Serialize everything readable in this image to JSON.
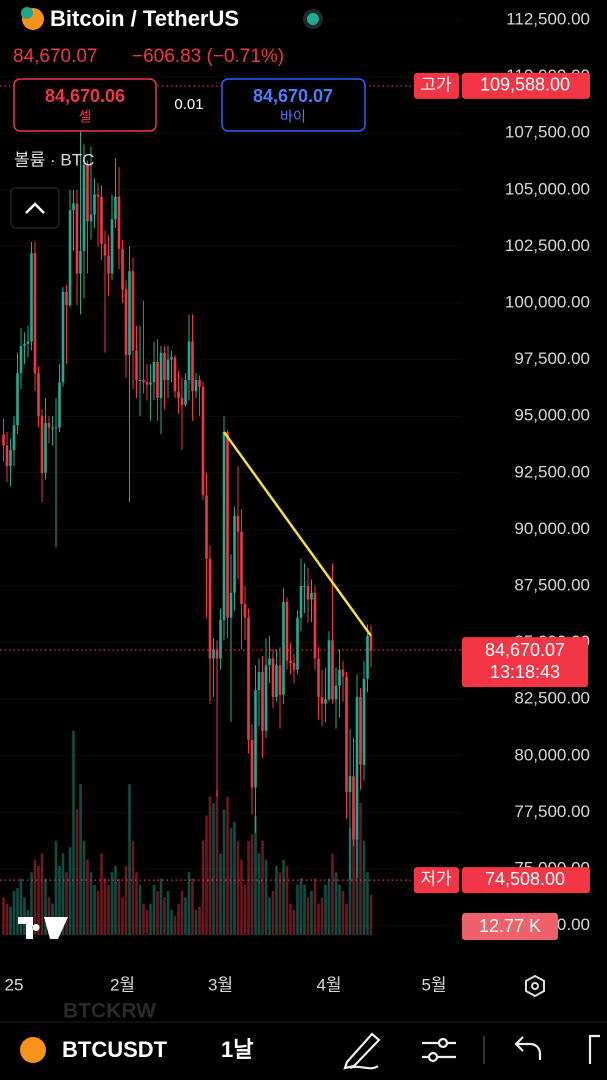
{
  "header": {
    "symbol_title": "Bitcoin / TetherUS",
    "price": "84,670.07",
    "change": "−606.83 (−0.71%)",
    "sell_price": "84,670.06",
    "sell_label": "셀",
    "spread": "0.01",
    "buy_price": "84,670.07",
    "buy_label": "바이",
    "volume_label": "볼륨 · BTC"
  },
  "chart_data": {
    "type": "candlestick",
    "up_color": "#22ab94",
    "down_color": "#f23645",
    "open": [
      94200,
      93700,
      92800,
      93500,
      94600,
      96900,
      98100,
      98200,
      98300,
      102200,
      96900,
      95000,
      92500,
      94700,
      94500,
      94500,
      94500,
      96500,
      100500,
      99900,
      104100,
      104400,
      101300,
      102300,
      106100,
      103600,
      103900,
      104800,
      104700,
      102600,
      102100,
      101300,
      103700,
      104700,
      102400,
      100600,
      97700,
      101400,
      97900,
      96600,
      96600,
      96500,
      96400,
      96500,
      97400,
      95800,
      97800,
      96600,
      97500,
      97600,
      96100,
      95800,
      95500,
      96600,
      98300,
      96100,
      96600,
      96300,
      91500,
      88700,
      84300,
      84700,
      84300,
      86000,
      94300,
      86100,
      87200,
      90600,
      89900,
      86700,
      86100,
      80700,
      78600,
      82900,
      83700,
      81100,
      84000,
      84300,
      82600,
      84000,
      82700,
      86800,
      84200,
      84100,
      83800,
      86100,
      87500,
      87500,
      86900,
      87200,
      84300,
      82600,
      82300,
      82500,
      85100,
      82500,
      83100,
      83800,
      83500,
      78400,
      79100,
      76300,
      82600,
      79600,
      83400,
      85300
    ],
    "high": [
      94900,
      94300,
      94000,
      95000,
      97800,
      98900,
      98700,
      99000,
      102700,
      102700,
      97200,
      95300,
      95800,
      95000,
      95000,
      95800,
      97300,
      100700,
      100800,
      105000,
      105000,
      105000,
      109588,
      107000,
      106300,
      106900,
      105500,
      105300,
      105200,
      103200,
      103000,
      104800,
      106400,
      106000,
      102800,
      101000,
      102500,
      102000,
      99000,
      99000,
      100100,
      97300,
      97300,
      98300,
      98400,
      98100,
      98100,
      98100,
      97900,
      97700,
      97000,
      96700,
      96900,
      99500,
      99500,
      96900,
      96800,
      96500,
      92500,
      89300,
      85200,
      85100,
      86500,
      95000,
      94400,
      88900,
      91000,
      92800,
      90900,
      87500,
      86500,
      81400,
      84000,
      84300,
      84400,
      85200,
      85300,
      84700,
      84700,
      84800,
      87400,
      87000,
      85000,
      84500,
      86400,
      88700,
      88500,
      88300,
      87800,
      87500,
      84800,
      83800,
      83900,
      85500,
      88500,
      83900,
      84700,
      84200,
      83700,
      81200,
      80800,
      83600,
      83000,
      84200,
      85800,
      85800
    ],
    "low": [
      93000,
      92100,
      91900,
      92800,
      94200,
      96200,
      97300,
      97600,
      97900,
      96100,
      94500,
      91200,
      92200,
      93800,
      93700,
      89200,
      94300,
      96300,
      97300,
      99800,
      102300,
      99900,
      99500,
      100200,
      101300,
      102800,
      103300,
      102500,
      101900,
      97800,
      100300,
      101000,
      103300,
      101500,
      100000,
      96700,
      91200,
      96200,
      95800,
      95000,
      96000,
      95700,
      94800,
      95700,
      94800,
      94200,
      95300,
      95800,
      96500,
      95800,
      95100,
      93500,
      95400,
      95700,
      94800,
      95800,
      95000,
      91300,
      86100,
      82300,
      82600,
      78200,
      83800,
      85100,
      85200,
      81500,
      86400,
      87800,
      84700,
      85100,
      80100,
      77400,
      76600,
      81300,
      79900,
      80800,
      83200,
      82100,
      82400,
      81200,
      82300,
      83800,
      83600,
      83200,
      83600,
      85500,
      86300,
      85900,
      85900,
      83800,
      81600,
      81300,
      81500,
      82400,
      82300,
      81200,
      81700,
      82400,
      77200,
      74508,
      76000,
      74600,
      78500,
      78900,
      82800,
      83900
    ],
    "close": [
      93700,
      92800,
      93500,
      94600,
      96900,
      98100,
      98200,
      98300,
      102200,
      96900,
      95000,
      92500,
      94700,
      94500,
      94500,
      94500,
      96500,
      100500,
      99900,
      104100,
      104400,
      101300,
      102300,
      106100,
      103600,
      103900,
      104800,
      104700,
      102600,
      102100,
      101300,
      103700,
      104700,
      102400,
      100600,
      97700,
      101400,
      97900,
      96600,
      96600,
      96500,
      96400,
      96500,
      97400,
      95800,
      97800,
      96600,
      97500,
      97600,
      96100,
      95800,
      95500,
      96600,
      98300,
      96100,
      96600,
      96300,
      91500,
      88700,
      84300,
      84700,
      84300,
      86000,
      94300,
      86100,
      87200,
      90600,
      89900,
      86700,
      86100,
      80700,
      78600,
      82900,
      83700,
      81100,
      84000,
      84300,
      82600,
      84000,
      82700,
      86800,
      84200,
      84100,
      83800,
      86100,
      87500,
      87500,
      86900,
      87200,
      84300,
      82600,
      82300,
      82500,
      85100,
      82500,
      83100,
      83800,
      83500,
      78400,
      79100,
      76300,
      82600,
      79600,
      83400,
      85300,
      84670.07
    ],
    "xlim": [
      -1,
      131
    ],
    "xticks": [
      {
        "value": 3,
        "label": "25"
      },
      {
        "value": 34,
        "label": "2월"
      },
      {
        "value": 62,
        "label": "3월"
      },
      {
        "value": 93,
        "label": "4월"
      },
      {
        "value": 123,
        "label": "5월"
      }
    ],
    "ylim": [
      72500,
      112500
    ],
    "yticks": [
      {
        "value": 112500,
        "label": "112,500.00"
      },
      {
        "value": 110000,
        "label": "110,000.00"
      },
      {
        "value": 107500,
        "label": "107,500.00"
      },
      {
        "value": 105000,
        "label": "105,000.00"
      },
      {
        "value": 102500,
        "label": "102,500.00"
      },
      {
        "value": 100000,
        "label": "100,000.00"
      },
      {
        "value": 97500,
        "label": "97,500.00"
      },
      {
        "value": 95000,
        "label": "95,000.00"
      },
      {
        "value": 92500,
        "label": "92,500.00"
      },
      {
        "value": 90000,
        "label": "90,000.00"
      },
      {
        "value": 87500,
        "label": "87,500.00"
      },
      {
        "value": 85000,
        "label": "85,000.00"
      },
      {
        "value": 82500,
        "label": "82,500.00"
      },
      {
        "value": 80000,
        "label": "80,000.00"
      },
      {
        "value": 77500,
        "label": "77,500.00"
      },
      {
        "value": 75000,
        "label": "75,000.00"
      },
      {
        "value": 72500,
        "label": "72,500.00"
      }
    ],
    "grid": true,
    "volume": {
      "values": [
        12,
        10,
        9,
        14,
        15,
        18,
        12,
        8,
        20,
        24,
        22,
        26,
        18,
        12,
        10,
        30,
        22,
        26,
        20,
        28,
        65,
        40,
        48,
        30,
        24,
        20,
        16,
        14,
        26,
        18,
        16,
        20,
        22,
        18,
        12,
        22,
        48,
        30,
        20,
        16,
        10,
        8,
        10,
        16,
        14,
        18,
        12,
        14,
        8,
        6,
        10,
        14,
        12,
        20,
        18,
        8,
        9,
        30,
        38,
        44,
        42,
        46,
        26,
        40,
        44,
        34,
        36,
        30,
        24,
        16,
        30,
        32,
        38,
        26,
        30,
        24,
        12,
        14,
        22,
        20,
        24,
        22,
        10,
        8,
        16,
        18,
        16,
        12,
        14,
        18,
        10,
        12,
        16,
        18,
        26,
        20,
        16,
        14,
        10,
        34,
        40,
        36,
        42,
        30,
        20,
        12.77
      ],
      "ylim": [
        0,
        70
      ]
    },
    "trendline": {
      "x": [
        63,
        105
      ],
      "y": [
        94300,
        85300
      ],
      "color": "#f5e042"
    },
    "high_marker": {
      "label": "고가",
      "value": 109588,
      "value_label": "109,588.00"
    },
    "low_marker": {
      "label": "저가",
      "value": 74508,
      "value_label": "74,508.00"
    },
    "last_price": {
      "value": 84670.07,
      "label": "84,670.07",
      "countdown": "13:18:43"
    },
    "last_volume": {
      "value": 12.77,
      "label": "12.77 K"
    }
  },
  "footer": {
    "faded_symbol": "BTCKRW",
    "symbol": "BTCUSDT",
    "interval": "1날"
  }
}
